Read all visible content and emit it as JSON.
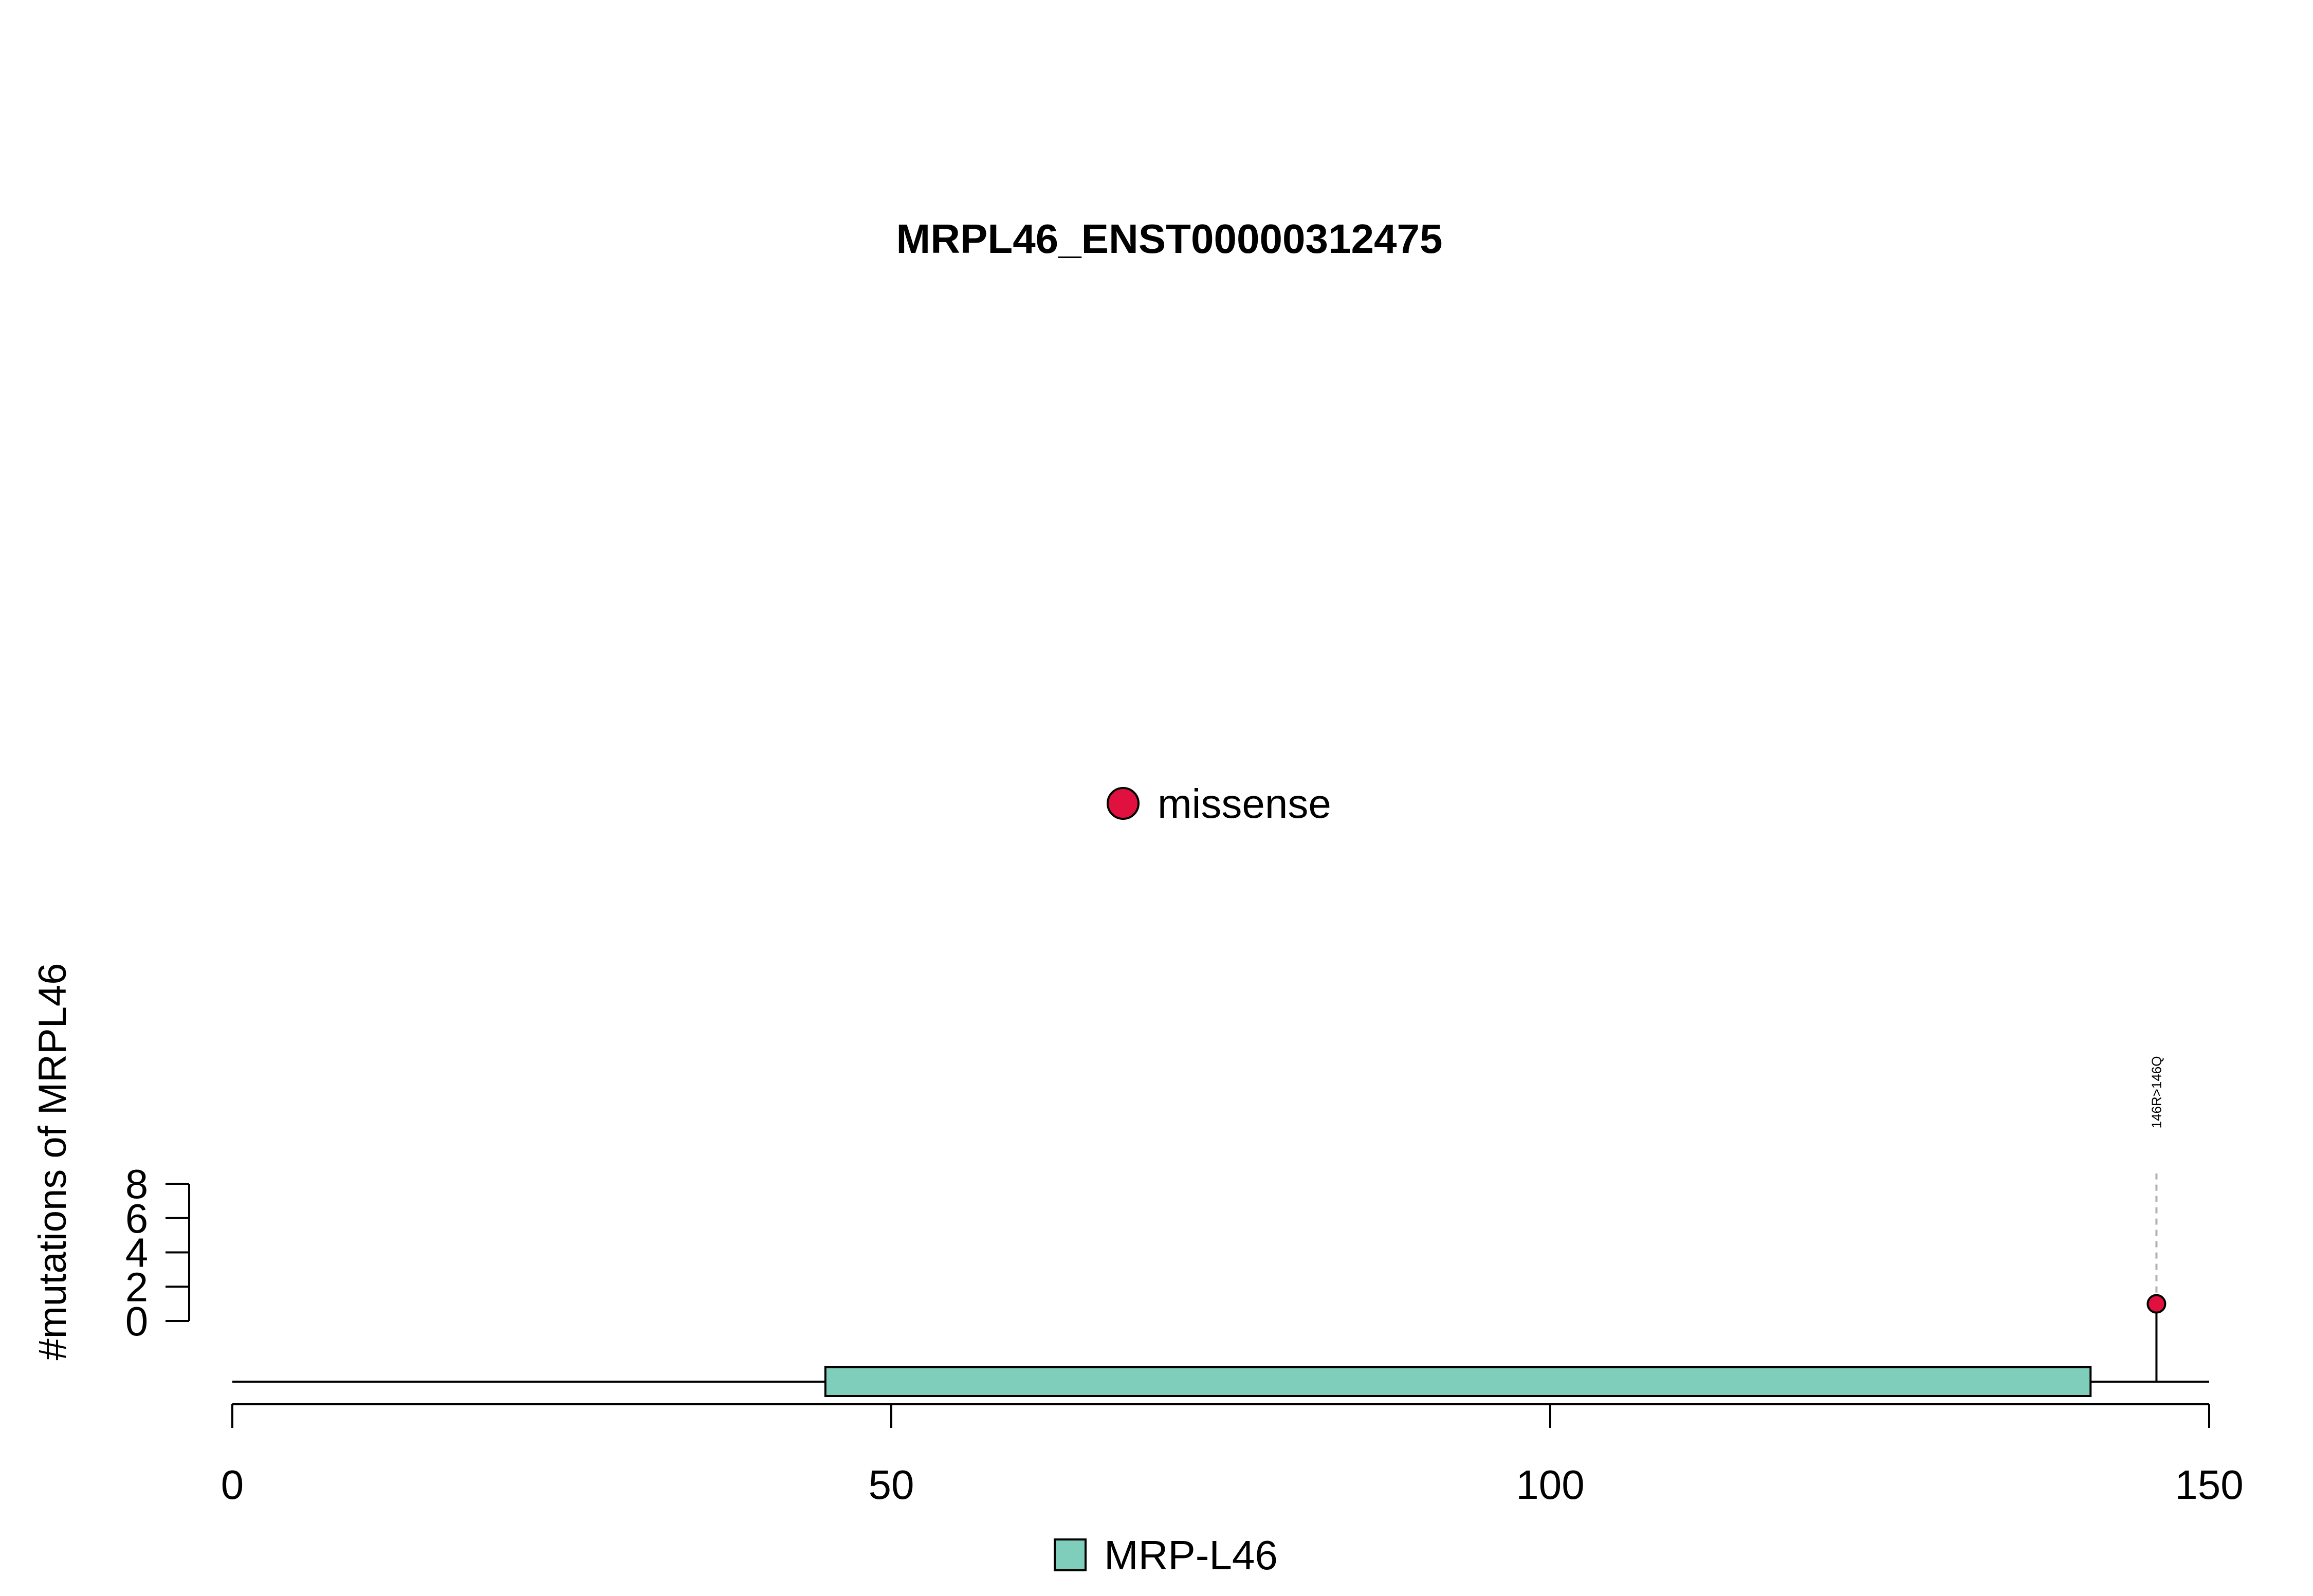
{
  "chart_data": {
    "type": "scatter",
    "subtype": "lollipop",
    "title": "MRPL46_ENST00000312475",
    "xlabel": "",
    "ylabel": "#mutations of MRPL46",
    "xlim": [
      0,
      150
    ],
    "x_ticks": [
      0,
      50,
      100,
      150
    ],
    "ylim": [
      0,
      8
    ],
    "y_ticks": [
      0,
      2,
      4,
      6,
      8
    ],
    "grid": false,
    "protein_length": 150,
    "domains": [
      {
        "name": "MRP-L46",
        "start": 45,
        "end": 141,
        "color": "#7fcdbb"
      }
    ],
    "mutation_legend": [
      {
        "name": "missense",
        "color": "#e0103f"
      }
    ],
    "series": [
      {
        "name": "missense",
        "color": "#e0103f",
        "points": [
          {
            "x": 146,
            "y": 1,
            "label": "146R>146Q"
          }
        ]
      }
    ],
    "domain_legend_placement": "bottom-center",
    "mutation_legend_placement": "center"
  }
}
